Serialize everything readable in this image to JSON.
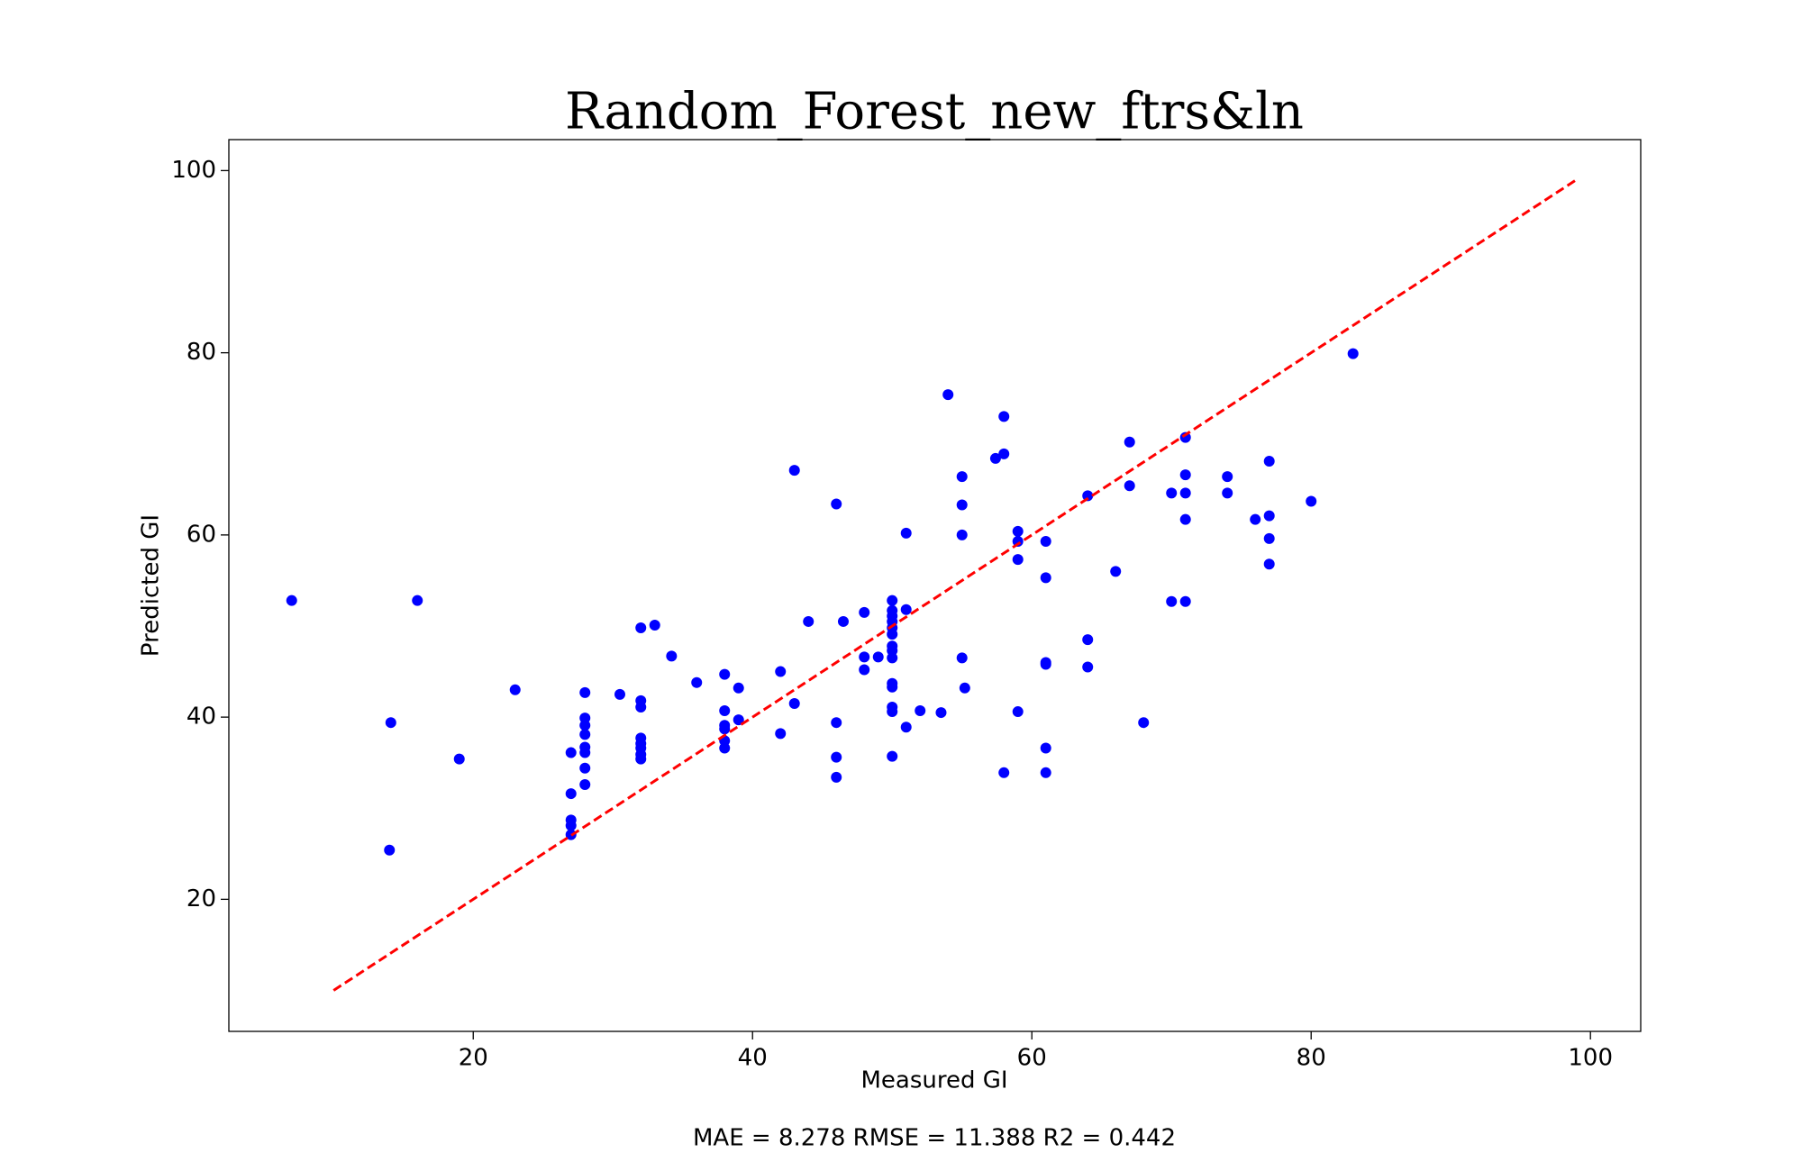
{
  "chart_data": {
    "type": "scatter",
    "title": "Random_Forest_new_ftrs&ln",
    "xlabel": "Measured GI",
    "ylabel": "Predicted GI",
    "annotation": "MAE = 8.278 RMSE = 11.388 R2 = 0.442",
    "color": "#0000ff",
    "x": [
      7,
      14.1,
      14,
      16,
      19,
      23,
      27,
      27,
      27,
      27,
      27,
      28,
      28,
      28,
      28,
      28,
      28,
      28,
      28,
      30.5,
      32,
      32,
      32,
      32,
      32,
      32,
      32,
      32,
      33,
      34.2,
      36,
      38,
      38,
      38,
      38,
      38,
      38,
      39,
      39,
      42,
      42,
      43,
      43,
      44,
      46,
      46,
      46,
      46,
      46.5,
      48,
      48,
      48,
      49,
      50,
      50,
      50,
      50,
      50,
      50,
      50,
      50,
      50,
      50,
      50,
      50,
      50,
      50,
      51,
      51,
      51,
      52,
      53.5,
      54,
      55,
      55,
      55,
      55,
      55.2,
      57.4,
      58,
      58,
      58,
      59,
      59,
      59,
      59,
      61,
      61,
      61,
      61,
      61,
      61,
      64,
      64,
      64,
      66,
      67,
      67,
      68,
      70,
      70,
      71,
      71,
      71,
      71,
      71,
      74,
      74,
      76,
      77,
      77,
      77,
      77,
      80,
      83
    ],
    "values": [
      52.8,
      39.4,
      25.4,
      52.8,
      35.4,
      43,
      36.1,
      31.6,
      28.7,
      28.1,
      27.1,
      42.7,
      39.9,
      39.1,
      38.1,
      36.7,
      36.1,
      34.4,
      32.6,
      42.5,
      49.8,
      41.8,
      41.1,
      37.7,
      37.1,
      36.6,
      35.9,
      35.4,
      50.1,
      46.7,
      43.8,
      44.7,
      40.7,
      39.1,
      38.7,
      37.4,
      36.6,
      43.2,
      39.7,
      45,
      38.2,
      67.1,
      41.5,
      50.5,
      63.4,
      39.4,
      35.6,
      33.4,
      50.5,
      51.5,
      46.6,
      45.2,
      46.6,
      52.8,
      51.7,
      51.1,
      50.5,
      49.8,
      49.1,
      47.8,
      47.3,
      46.5,
      43.7,
      43.3,
      41.1,
      40.6,
      35.7,
      60.2,
      51.8,
      38.9,
      40.7,
      40.5,
      75.4,
      66.4,
      63.3,
      60,
      46.5,
      43.2,
      68.4,
      73,
      68.9,
      33.9,
      60.4,
      59.3,
      57.3,
      40.6,
      59.3,
      55.3,
      46,
      45.8,
      36.6,
      33.9,
      64.3,
      48.5,
      45.5,
      56,
      70.2,
      65.4,
      39.4,
      64.6,
      52.7,
      70.7,
      66.6,
      64.6,
      61.7,
      52.7,
      66.4,
      64.6,
      61.7,
      68.1,
      62.1,
      59.6,
      56.8,
      63.7,
      79.9
    ],
    "reference_line": {
      "x": [
        10,
        99
      ],
      "y": [
        10,
        99
      ],
      "color": "#ff0000"
    },
    "xlim": [
      2.5,
      103.6
    ],
    "ylim": [
      5.5,
      103.4
    ],
    "xticks": [
      20,
      40,
      60,
      80,
      100
    ],
    "yticks": [
      20,
      40,
      60,
      80,
      100
    ]
  }
}
